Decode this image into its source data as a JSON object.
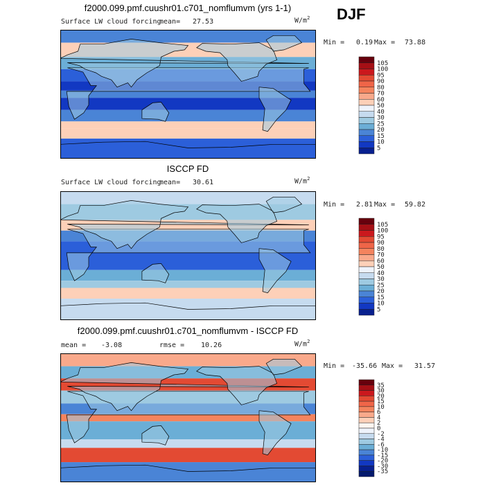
{
  "season": "DJF",
  "units_base": "W/m",
  "units_exp": "2",
  "panels": [
    {
      "title": "f2000.099.pmf.cuushr01.c701_nomflumvm (yrs 1-1)",
      "field": "Surface LW cloud forcing",
      "mean_label": "mean=",
      "mean": "27.53",
      "rmse_label": "",
      "rmse": "",
      "min_label": "Min =",
      "min": "0.19",
      "max_label": "Max =",
      "max": "73.88",
      "levels": [
        "105",
        "100",
        "95",
        "90",
        "80",
        "70",
        "60",
        "50",
        "40",
        "30",
        "25",
        "20",
        "15",
        "10",
        "5"
      ],
      "colors": [
        "#67000d",
        "#a50f15",
        "#cb181d",
        "#e34a33",
        "#ef6548",
        "#f4845e",
        "#f9a98b",
        "#fdd0b8",
        "#eef3fb",
        "#c6dbef",
        "#9ecae1",
        "#6baed6",
        "#4a84d6",
        "#2b5fd9",
        "#1238c2",
        "#08208f"
      ]
    },
    {
      "title": "ISCCP FD",
      "field": "Surface LW cloud forcing",
      "mean_label": "mean=",
      "mean": "30.61",
      "rmse_label": "",
      "rmse": "",
      "min_label": "Min =",
      "min": "2.81",
      "max_label": "Max =",
      "max": "59.82",
      "levels": [
        "105",
        "100",
        "95",
        "90",
        "80",
        "70",
        "60",
        "50",
        "40",
        "30",
        "25",
        "20",
        "15",
        "10",
        "5"
      ],
      "colors": [
        "#67000d",
        "#a50f15",
        "#cb181d",
        "#e34a33",
        "#ef6548",
        "#f4845e",
        "#f9a98b",
        "#fdd0b8",
        "#eef3fb",
        "#c6dbef",
        "#9ecae1",
        "#6baed6",
        "#4a84d6",
        "#2b5fd9",
        "#1238c2",
        "#08208f"
      ]
    },
    {
      "title": "f2000.099.pmf.cuushr01.c701_nomflumvm - ISCCP FD",
      "field": "",
      "mean_label": "mean =",
      "mean": "-3.08",
      "rmse_label": "rmse =",
      "rmse": "10.26",
      "min_label": "Min =",
      "min": "-35.66",
      "max_label": "Max =",
      "max": "31.57",
      "levels": [
        "35",
        "30",
        "20",
        "15",
        "10",
        "6",
        "4",
        "2",
        "0",
        "-2",
        "-4",
        "-6",
        "-10",
        "-15",
        "-20",
        "-30",
        "-35"
      ],
      "colors": [
        "#67000d",
        "#a50f15",
        "#cb181d",
        "#e34a33",
        "#ef6548",
        "#f4845e",
        "#f9a98b",
        "#fdd0b8",
        "#fff5f0",
        "#eef3fb",
        "#c6dbef",
        "#9ecae1",
        "#6baed6",
        "#4a84d6",
        "#2b5fd9",
        "#1238c2",
        "#08208f",
        "#041a6e"
      ]
    }
  ],
  "chart_data": [
    {
      "type": "heatmap",
      "title": "f2000.099.pmf.cuushr01.c701_nomflumvm (yrs 1-1)",
      "field": "Surface LW cloud forcing",
      "season": "DJF",
      "mean": 27.53,
      "min": 0.19,
      "max": 73.88,
      "colorbar_levels": [
        5,
        10,
        15,
        20,
        25,
        30,
        40,
        50,
        60,
        70,
        80,
        90,
        95,
        100,
        105
      ]
    },
    {
      "type": "heatmap",
      "title": "ISCCP FD",
      "field": "Surface LW cloud forcing",
      "season": "DJF",
      "mean": 30.61,
      "min": 2.81,
      "max": 59.82,
      "colorbar_levels": [
        5,
        10,
        15,
        20,
        25,
        30,
        40,
        50,
        60,
        70,
        80,
        90,
        95,
        100,
        105
      ]
    },
    {
      "type": "heatmap",
      "title": "f2000.099.pmf.cuushr01.c701_nomflumvm - ISCCP FD",
      "field": "",
      "season": "DJF",
      "mean": -3.08,
      "rmse": 10.26,
      "min": -35.66,
      "max": 31.57,
      "colorbar_levels": [
        -35,
        -30,
        -20,
        -15,
        -10,
        -6,
        -4,
        -2,
        0,
        2,
        4,
        6,
        10,
        15,
        20,
        30,
        35
      ]
    }
  ]
}
